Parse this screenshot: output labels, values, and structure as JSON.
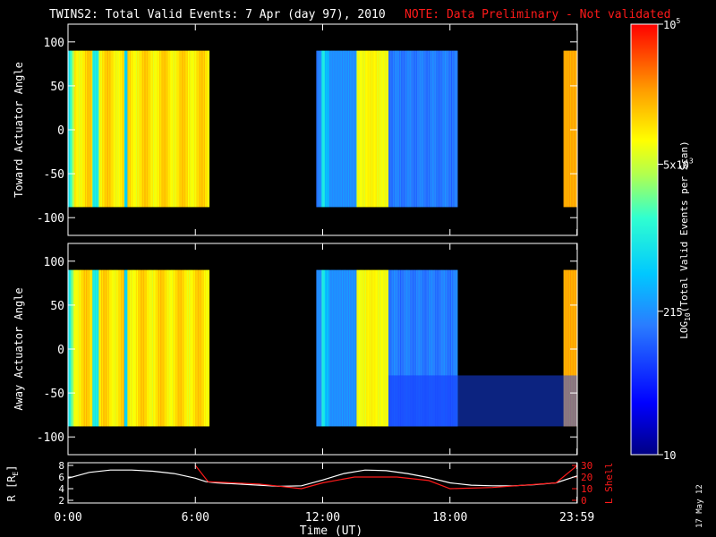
{
  "header": {
    "title": "TWINS2: Total Valid Events:  7 Apr (day  97), 2010",
    "note": "NOTE: Data Preliminary - Not validated",
    "note_color": "#ff1a1a"
  },
  "panels": {
    "toward_ylabel": "Toward Actuator Angle",
    "away_ylabel": "Away Actuator Angle",
    "yticks": [
      "100",
      "50",
      "0",
      "-50",
      "-100"
    ]
  },
  "orbit": {
    "r_label": "R [R",
    "r_sub": "E",
    "r_label_end": "]",
    "r_ticks": [
      "8",
      "6",
      "4",
      "2"
    ],
    "l_label": "L Shell",
    "l_ticks": [
      "30",
      "20",
      "10",
      "0"
    ],
    "l_color": "#ff1a1a"
  },
  "xaxis": {
    "label": "Time (UT)",
    "ticks": [
      "0:00",
      "6:00",
      "12:00",
      "18:00",
      "23:59"
    ]
  },
  "colorbar": {
    "label_pre": "LOG",
    "label_sub": "10",
    "label_post": "(Total Valid  Events per Scan)",
    "ticks": [
      {
        "base": "10",
        "exp": "5"
      },
      {
        "base": "5x10",
        "exp": "3"
      },
      {
        "base": "215",
        "exp": ""
      },
      {
        "base": "10",
        "exp": ""
      }
    ]
  },
  "date_stamp": "17 May 12",
  "chart_data": {
    "type": "heatmap",
    "title": "TWINS2: Total Valid Events:  7 Apr (day  97), 2010",
    "xlabel": "Time (UT)",
    "xlim_hours": [
      0,
      24
    ],
    "ylim": [
      -110,
      110
    ],
    "color_scale": "log10",
    "color_range": [
      10,
      100000
    ],
    "data_intervals_hours": [
      [
        0.0,
        6.65
      ],
      [
        11.7,
        18.35
      ],
      [
        23.35,
        24.0
      ]
    ],
    "panels": [
      {
        "name": "Toward Actuator Angle",
        "angle_range": [
          -88,
          90
        ]
      },
      {
        "name": "Away Actuator Angle",
        "angle_range": [
          -88,
          90
        ]
      }
    ],
    "orbit": {
      "time_hours": [
        0,
        1,
        2,
        3,
        4,
        5,
        6,
        6.5,
        7,
        8,
        9,
        10,
        11,
        12,
        13,
        14,
        15,
        16,
        17,
        18,
        19,
        20,
        21,
        22,
        23,
        24
      ],
      "R_RE": [
        5.8,
        6.8,
        7.2,
        7.2,
        7.0,
        6.6,
        5.8,
        5.2,
        5.0,
        4.8,
        4.6,
        4.4,
        4.5,
        5.5,
        6.6,
        7.2,
        7.1,
        6.6,
        5.9,
        5.0,
        4.6,
        4.5,
        4.5,
        4.7,
        5.0,
        6.2
      ],
      "L_time_hours": [
        6.0,
        6.6,
        9.0,
        11.0,
        12.0,
        13.5,
        15.5,
        17.0,
        18.0,
        20.0,
        23.0,
        24.0
      ],
      "L_shell": [
        30,
        16,
        14,
        10,
        15,
        20,
        20,
        17,
        10,
        11,
        15,
        30
      ]
    }
  }
}
